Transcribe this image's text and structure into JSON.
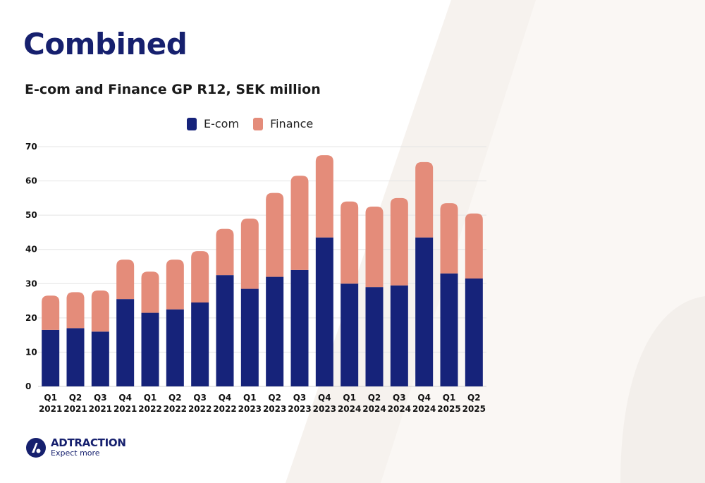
{
  "page": {
    "title": "Combined",
    "subtitle": "E-com and Finance GP R12, SEK million"
  },
  "brand": {
    "name": "ADTRACTION",
    "tagline": "Expect more",
    "primary_color": "#16206e"
  },
  "chart_data": {
    "type": "bar",
    "stacked": true,
    "title": "",
    "xlabel": "",
    "ylabel": "",
    "ylim": [
      0,
      70
    ],
    "yticks": [
      0,
      10,
      20,
      30,
      40,
      50,
      60,
      70
    ],
    "grid": true,
    "legend_position": "top",
    "categories": [
      [
        "Q1",
        "2021"
      ],
      [
        "Q2",
        "2021"
      ],
      [
        "Q3",
        "2021"
      ],
      [
        "Q4",
        "2021"
      ],
      [
        "Q1",
        "2022"
      ],
      [
        "Q2",
        "2022"
      ],
      [
        "Q3",
        "2022"
      ],
      [
        "Q4",
        "2022"
      ],
      [
        "Q1",
        "2023"
      ],
      [
        "Q2",
        "2023"
      ],
      [
        "Q3",
        "2023"
      ],
      [
        "Q4",
        "2023"
      ],
      [
        "Q1",
        "2024"
      ],
      [
        "Q2",
        "2024"
      ],
      [
        "Q3",
        "2024"
      ],
      [
        "Q4",
        "2024"
      ],
      [
        "Q1",
        "2025"
      ],
      [
        "Q2",
        "2025"
      ]
    ],
    "series": [
      {
        "name": "E-com",
        "color": "#16237a",
        "values": [
          16.5,
          17,
          16,
          25.5,
          21.5,
          22.5,
          24.5,
          32.5,
          28.5,
          32,
          34,
          43.5,
          30,
          29,
          29.5,
          43.5,
          33,
          31.5
        ]
      },
      {
        "name": "Finance",
        "color": "#e48c7a",
        "values": [
          10,
          10.5,
          12,
          11.5,
          12,
          14.5,
          15,
          13.5,
          20.5,
          24.5,
          27.5,
          24,
          24,
          23.5,
          25.5,
          22,
          20.5,
          19
        ]
      }
    ]
  }
}
